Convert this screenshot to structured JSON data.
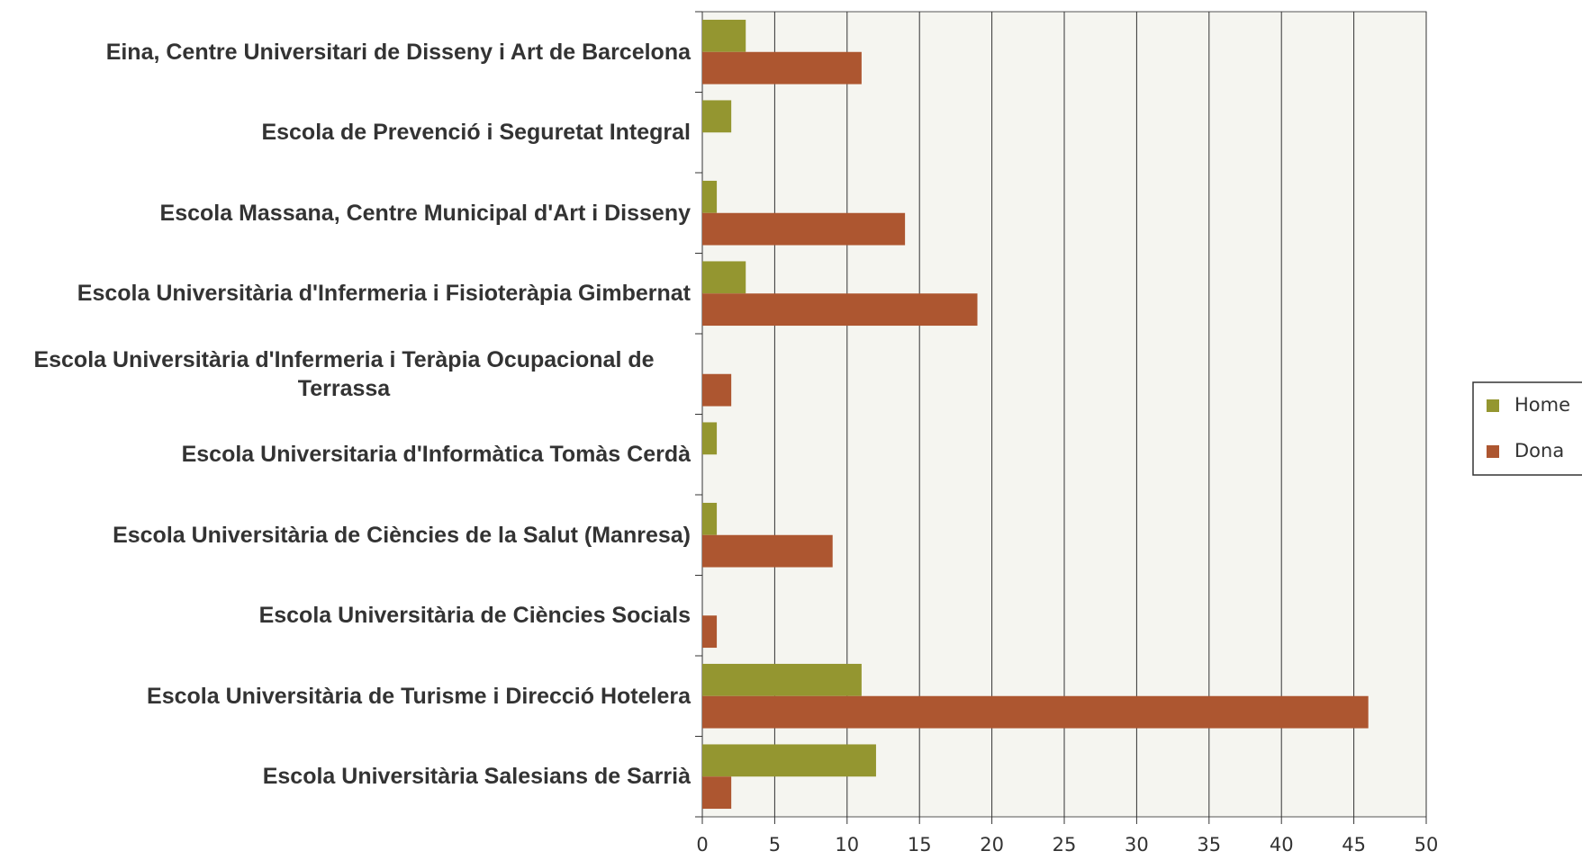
{
  "chart_data": {
    "type": "barh",
    "categories": [
      "Eina, Centre Universitari de Disseny i Art de Barcelona",
      "Escola de Prevenció i Seguretat Integral",
      "Escola Massana, Centre Municipal d'Art i Disseny",
      "Escola Universitària d'Infermeria i Fisioteràpia Gimbernat",
      "Escola Universitària d'Infermeria i Teràpia Ocupacional de Terrassa",
      "Escola Universitaria d'Informàtica Tomàs Cerdà",
      "Escola Universitària de Ciències de la Salut (Manresa)",
      "Escola Universitària de Ciències Socials",
      "Escola Universitària de Turisme i Direcció Hotelera",
      "Escola Universitària Salesians de Sarrià"
    ],
    "series": [
      {
        "name": "Home",
        "color": "#949630",
        "values": [
          3,
          2,
          1,
          3,
          0,
          1,
          1,
          0,
          11,
          12
        ]
      },
      {
        "name": "Dona",
        "color": "#ad5630",
        "values": [
          11,
          0,
          14,
          19,
          2,
          0,
          9,
          1,
          46,
          2
        ]
      }
    ],
    "xlim": [
      0,
      50
    ],
    "xticks": [
      0,
      5,
      10,
      15,
      20,
      25,
      30,
      35,
      40,
      45,
      50
    ],
    "grid": true,
    "legend": "right"
  }
}
